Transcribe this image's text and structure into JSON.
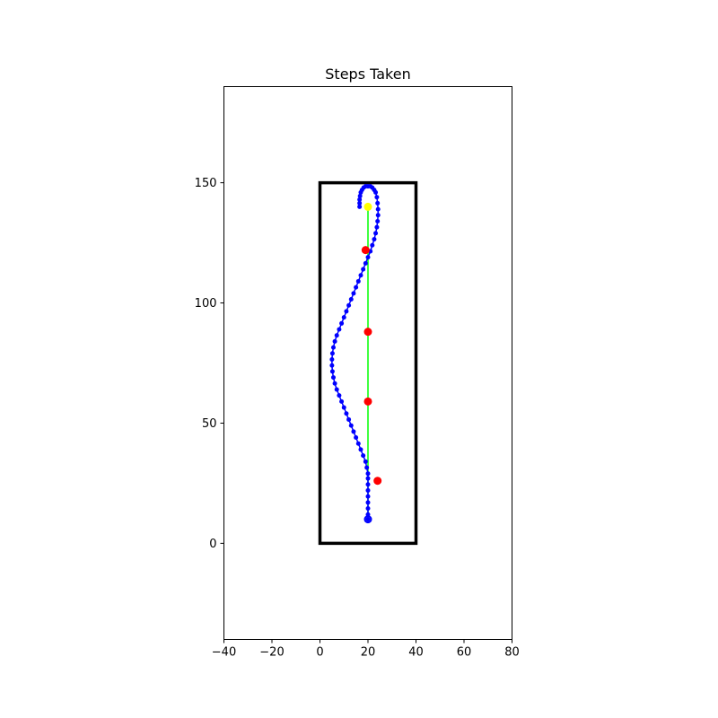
{
  "chart_data": {
    "type": "scatter",
    "title": "Steps Taken",
    "xlabel": "",
    "ylabel": "",
    "xlim": [
      -40,
      80
    ],
    "ylim": [
      -40,
      190
    ],
    "xticks": [
      -40,
      -20,
      0,
      20,
      40,
      60,
      80
    ],
    "yticks": [
      0,
      50,
      100,
      150
    ],
    "grid": false,
    "legend": "none",
    "boundary": {
      "x0": 0,
      "y0": 0,
      "x1": 40,
      "y1": 150,
      "color": "#000000"
    },
    "reference_path": {
      "x": [
        20,
        20
      ],
      "y": [
        10,
        140
      ],
      "color": "#00ff00"
    },
    "start_marker": {
      "x": 20,
      "y": 10,
      "color": "#0000ff"
    },
    "goal_marker": {
      "x": 20,
      "y": 140,
      "color": "#ffff00"
    },
    "obstacles": {
      "color": "#ff0000",
      "points": [
        {
          "x": 19,
          "y": 122
        },
        {
          "x": 20,
          "y": 88
        },
        {
          "x": 20,
          "y": 59
        },
        {
          "x": 24,
          "y": 26
        }
      ]
    },
    "series": [
      {
        "color": "#0000ff",
        "x": [
          20,
          20,
          20,
          20,
          20,
          20,
          20,
          20,
          20,
          19.5,
          19,
          18,
          17,
          16,
          15,
          14,
          13,
          12,
          11,
          10,
          9,
          8,
          7,
          6.2,
          5.6,
          5.2,
          5,
          5,
          5.2,
          5.6,
          6.2,
          7,
          8,
          9,
          10,
          11,
          12,
          13,
          14,
          15,
          16,
          17,
          18,
          19,
          20,
          21,
          21.8,
          22.6,
          23.2,
          23.7,
          24,
          24.2,
          24.2,
          24,
          23.7,
          23.2,
          22.6,
          21.8,
          21,
          20,
          19,
          18.2,
          17.5,
          17,
          16.7,
          16.5,
          16.5,
          16.5
        ],
        "y": [
          10,
          12,
          14.5,
          17,
          19.5,
          22,
          24.5,
          27,
          29,
          31.5,
          34,
          36.5,
          39,
          41.5,
          44,
          46.5,
          49,
          51.5,
          54,
          56.5,
          59,
          61.5,
          64,
          66.5,
          69,
          71.5,
          74,
          76.5,
          79,
          81.5,
          84,
          86.5,
          89,
          91.5,
          94,
          96.5,
          99,
          101.5,
          104,
          106.5,
          109,
          111.5,
          114,
          116.5,
          119,
          121.5,
          124,
          126.5,
          129,
          131.5,
          134,
          136.5,
          139,
          141.5,
          144,
          146,
          147,
          148,
          148.5,
          148.5,
          148.5,
          148,
          147,
          146,
          144.5,
          143,
          141.5,
          140
        ]
      }
    ]
  }
}
